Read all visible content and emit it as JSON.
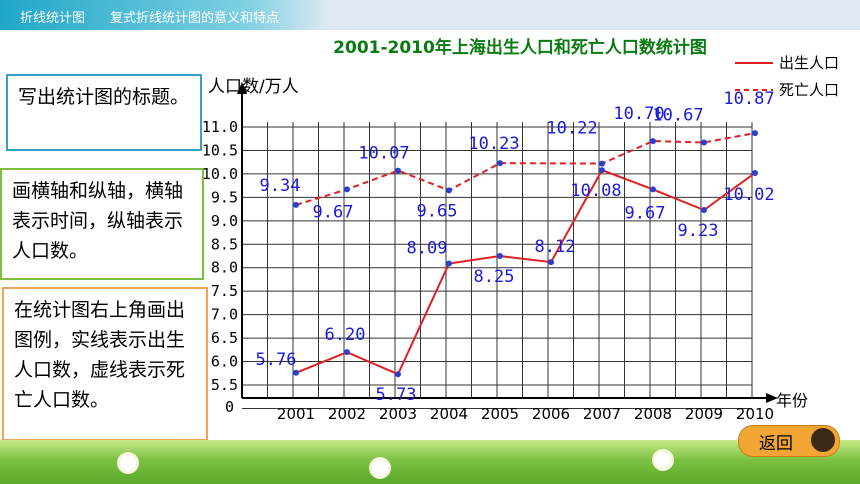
{
  "header": {
    "section": "折线统计图",
    "topic": "复式折线统计图的意义和特点"
  },
  "notes": {
    "title_tip": "写出统计图的标题。",
    "axis_tip": "画横轴和纵轴，横轴表示时间，纵轴表示人口数。",
    "legend_tip": "在统计图右上角画出图例，实线表示出生人口数，虚线表示死亡人口数。"
  },
  "return_button": {
    "label": "返回",
    "icon": "return-icon"
  },
  "chart_data": {
    "type": "line",
    "title": "2001-2010年上海出生人口和死亡人口数统计图",
    "ylabel": "人口数/万人",
    "xlabel": "年份",
    "y_origin_label": "0",
    "categories": [
      "2001",
      "2002",
      "2003",
      "2004",
      "2005",
      "2006",
      "2007",
      "2008",
      "2009",
      "2010"
    ],
    "y_ticks": [
      "5.5",
      "6.0",
      "6.5",
      "7.0",
      "7.5",
      "8.0",
      "8.5",
      "9.0",
      "9.5",
      "10.0",
      "10.5",
      "11.0"
    ],
    "ylim": [
      5.5,
      11.0
    ],
    "grid": true,
    "legend_position": "top-right",
    "series": [
      {
        "name": "出生人口",
        "style": "solid",
        "color": "#e02020",
        "values": [
          5.76,
          6.2,
          5.73,
          8.09,
          8.25,
          8.12,
          10.08,
          9.67,
          9.23,
          10.02
        ],
        "labels": [
          "5.76",
          "6.20",
          "5.73",
          "8.09",
          "8.25",
          "8.12",
          "10.08",
          "9.67",
          "9.23",
          "10.02"
        ]
      },
      {
        "name": "死亡人口",
        "style": "dashed",
        "color": "#e02020",
        "values": [
          9.34,
          9.67,
          10.07,
          9.65,
          10.23,
          null,
          10.22,
          10.7,
          10.67,
          10.87
        ],
        "labels": [
          "9.34",
          "9.67",
          "10.07",
          "9.65",
          "10.23",
          "",
          "10.22",
          "10.70",
          "10.67",
          "10.87"
        ]
      }
    ],
    "colors": {
      "label": "#1a1adc",
      "point": "#2a3fd0",
      "title": "#0a7a12",
      "line": "#e02020"
    }
  }
}
